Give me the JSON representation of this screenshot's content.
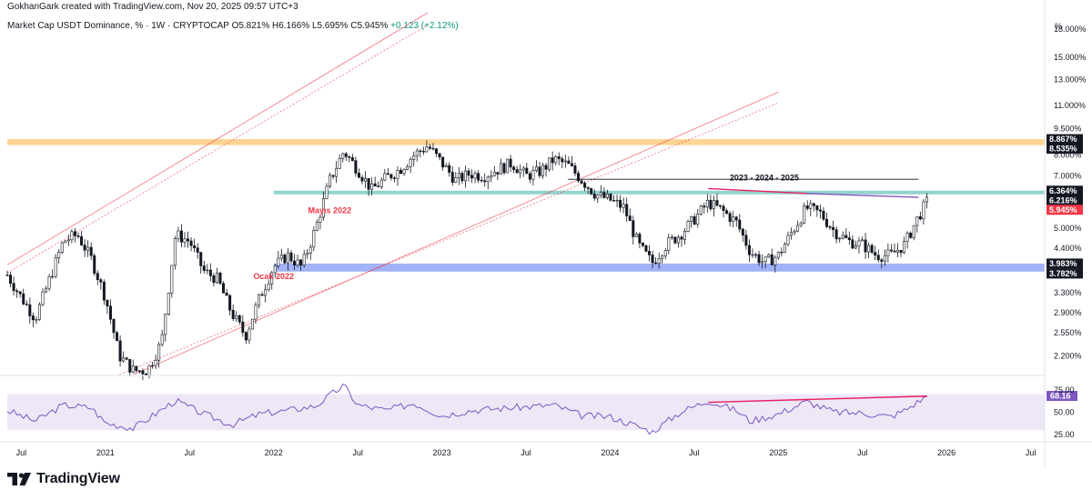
{
  "header": {
    "credit": "GokhanGark created with TradingView.com, Nov 20, 2025 09:57 UTC+3",
    "symbol": "Market Cap USDT Dominance, % · 1W · CRYPTOCAP",
    "open": "O5.821%",
    "high": "H6.166%",
    "low": "L5.695%",
    "close": "C5.945%",
    "change": "+0.123 (+2.12%)"
  },
  "brand": {
    "name": "TradingView",
    "icon": "tradingview-logo-icon"
  },
  "colors": {
    "up": "#131722",
    "down": "#131722",
    "orange_zone": "#ffcc80",
    "green_zone": "#80cbc4",
    "blue_zone": "#90a4f4",
    "channel": "#f23645",
    "rsi": "#7e57c2",
    "rsi_band": "#ede7f6",
    "divergence": "#e91e63",
    "last_price": "#f23645"
  },
  "chart_data": [
    {
      "type": "candlestick",
      "title": "Market Cap USDT Dominance, % · 1W · CRYPTOCAP",
      "unit_label": "%",
      "y_scale": "log",
      "ylim": [
        1.95,
        20
      ],
      "x_range": [
        "2020-06",
        "2026-08"
      ],
      "y_ticks": [
        "18.000%",
        "15.000%",
        "13.000%",
        "11.000%",
        "9.500%",
        "8.000%",
        "7.000%",
        "6.000%",
        "5.000%",
        "4.400%",
        "3.900%",
        "3.300%",
        "2.900%",
        "2.550%",
        "2.200%"
      ],
      "x_ticks": [
        "Jul",
        "2021",
        "Jul",
        "2022",
        "Jul",
        "2023",
        "Jul",
        "2024",
        "Jul",
        "2025",
        "Jul",
        "2026",
        "Jul"
      ],
      "keypoints": [
        [
          "2020-06",
          3.7
        ],
        [
          "2020-07",
          3.2
        ],
        [
          "2020-08",
          2.8
        ],
        [
          "2020-10",
          4.6
        ],
        [
          "2020-11",
          4.8
        ],
        [
          "2020-12",
          4.1
        ],
        [
          "2021-01",
          3.2
        ],
        [
          "2021-02",
          2.2
        ],
        [
          "2021-03",
          2.0
        ],
        [
          "2021-04",
          2.0
        ],
        [
          "2021-05",
          2.4
        ],
        [
          "2021-06",
          4.8
        ],
        [
          "2021-07",
          4.6
        ],
        [
          "2021-08",
          3.8
        ],
        [
          "2021-09",
          3.6
        ],
        [
          "2021-10",
          2.9
        ],
        [
          "2021-11",
          2.5
        ],
        [
          "2021-12",
          3.2
        ],
        [
          "2022-01",
          3.9
        ],
        [
          "2022-02",
          4.2
        ],
        [
          "2022-03",
          3.9
        ],
        [
          "2022-04",
          5.0
        ],
        [
          "2022-05",
          6.8
        ],
        [
          "2022-06",
          8.2
        ],
        [
          "2022-07",
          7.3
        ],
        [
          "2022-08",
          6.4
        ],
        [
          "2022-09",
          6.9
        ],
        [
          "2022-10",
          7.3
        ],
        [
          "2022-11",
          8.0
        ],
        [
          "2022-12",
          8.5
        ],
        [
          "2023-01",
          7.6
        ],
        [
          "2023-02",
          6.8
        ],
        [
          "2023-03",
          7.1
        ],
        [
          "2023-04",
          7.0
        ],
        [
          "2023-05",
          7.3
        ],
        [
          "2023-06",
          7.6
        ],
        [
          "2023-07",
          7.0
        ],
        [
          "2023-08",
          7.2
        ],
        [
          "2023-09",
          7.8
        ],
        [
          "2023-10",
          7.5
        ],
        [
          "2023-11",
          6.8
        ],
        [
          "2023-12",
          6.2
        ],
        [
          "2024-01",
          6.0
        ],
        [
          "2024-02",
          5.7
        ],
        [
          "2024-03",
          4.5
        ],
        [
          "2024-04",
          4.0
        ],
        [
          "2024-05",
          4.5
        ],
        [
          "2024-06",
          4.8
        ],
        [
          "2024-07",
          5.3
        ],
        [
          "2024-08",
          5.9
        ],
        [
          "2024-09",
          5.6
        ],
        [
          "2024-10",
          5.2
        ],
        [
          "2024-11",
          4.3
        ],
        [
          "2024-12",
          4.0
        ],
        [
          "2025-01",
          4.2
        ],
        [
          "2025-02",
          4.9
        ],
        [
          "2025-03",
          5.7
        ],
        [
          "2025-04",
          5.5
        ],
        [
          "2025-05",
          4.9
        ],
        [
          "2025-06",
          4.6
        ],
        [
          "2025-07",
          4.5
        ],
        [
          "2025-08",
          4.2
        ],
        [
          "2025-09",
          4.2
        ],
        [
          "2025-10",
          4.5
        ],
        [
          "2025-11",
          5.4
        ],
        [
          "2025-11-20",
          5.945
        ]
      ],
      "zones": [
        {
          "name": "resistance-zone",
          "from": 8.535,
          "to": 8.867,
          "color": "#ffcc80"
        },
        {
          "name": "mid-zone",
          "from": 6.216,
          "to": 6.364,
          "color": "#80cbc4"
        },
        {
          "name": "support-zone",
          "from": 3.782,
          "to": 3.983,
          "color": "#90a4f4"
        }
      ],
      "price_labels": [
        {
          "value": 8.867,
          "text": "8.867%",
          "color": "#131722"
        },
        {
          "value": 8.535,
          "text": "8.535%",
          "color": "#131722"
        },
        {
          "value": 6.364,
          "text": "6.364%",
          "color": "#131722"
        },
        {
          "value": 6.216,
          "text": "6.216%",
          "color": "#131722"
        },
        {
          "value": 5.945,
          "text": "5.945%",
          "color": "#f23645"
        },
        {
          "value": 3.983,
          "text": "3.983%",
          "color": "#131722"
        },
        {
          "value": 3.782,
          "text": "3.782%",
          "color": "#131722"
        }
      ],
      "annotations": [
        {
          "text": "Mayıs 2022",
          "date": "2022-05",
          "value": 5.5,
          "color": "#f23645"
        },
        {
          "text": "Ocak 2022",
          "date": "2022-01",
          "value": 3.6,
          "color": "#f23645"
        },
        {
          "text": "2023 - 2024 - 2025",
          "date": "2024-12",
          "value": 6.8,
          "color": "#131722"
        }
      ],
      "lines": [
        {
          "name": "measure-line",
          "from": [
            "2023-10",
            6.85
          ],
          "to": [
            "2025-11",
            6.85
          ],
          "color": "#131722"
        },
        {
          "name": "price-divergence-line",
          "from": [
            "2024-08",
            6.45
          ],
          "to": [
            "2025-03",
            6.25
          ],
          "color": "#e91e63"
        },
        {
          "name": "price-trend-line",
          "from": [
            "2025-03",
            6.25
          ],
          "to": [
            "2025-11",
            6.1
          ],
          "color": "#7e57c2"
        }
      ]
    },
    {
      "type": "line",
      "title": "RSI",
      "ylim": [
        20,
        90
      ],
      "y_ticks": [
        "75.00",
        "50.00",
        "25.00"
      ],
      "band": [
        30,
        70
      ],
      "last_value": "68.16",
      "keypoints": [
        [
          "2020-06",
          52
        ],
        [
          "2020-08",
          40
        ],
        [
          "2020-10",
          58
        ],
        [
          "2020-12",
          55
        ],
        [
          "2021-01",
          38
        ],
        [
          "2021-03",
          32
        ],
        [
          "2021-06",
          63
        ],
        [
          "2021-08",
          48
        ],
        [
          "2021-10",
          36
        ],
        [
          "2021-12",
          48
        ],
        [
          "2022-02",
          52
        ],
        [
          "2022-04",
          57
        ],
        [
          "2022-06",
          80
        ],
        [
          "2022-07",
          58
        ],
        [
          "2022-09",
          52
        ],
        [
          "2022-11",
          60
        ],
        [
          "2023-01",
          46
        ],
        [
          "2023-03",
          52
        ],
        [
          "2023-06",
          55
        ],
        [
          "2023-09",
          58
        ],
        [
          "2023-11",
          46
        ],
        [
          "2024-01",
          45
        ],
        [
          "2024-03",
          34
        ],
        [
          "2024-04",
          28
        ],
        [
          "2024-06",
          50
        ],
        [
          "2024-08",
          63
        ],
        [
          "2024-10",
          52
        ],
        [
          "2024-11",
          40
        ],
        [
          "2025-01",
          48
        ],
        [
          "2025-03",
          62
        ],
        [
          "2025-05",
          50
        ],
        [
          "2025-07",
          49
        ],
        [
          "2025-09",
          45
        ],
        [
          "2025-10",
          52
        ],
        [
          "2025-11-20",
          68.16
        ]
      ],
      "lines": [
        {
          "name": "rsi-divergence-line",
          "from": [
            "2024-08",
            61
          ],
          "to": [
            "2025-11-20",
            68
          ],
          "color": "#e91e63"
        }
      ]
    }
  ]
}
